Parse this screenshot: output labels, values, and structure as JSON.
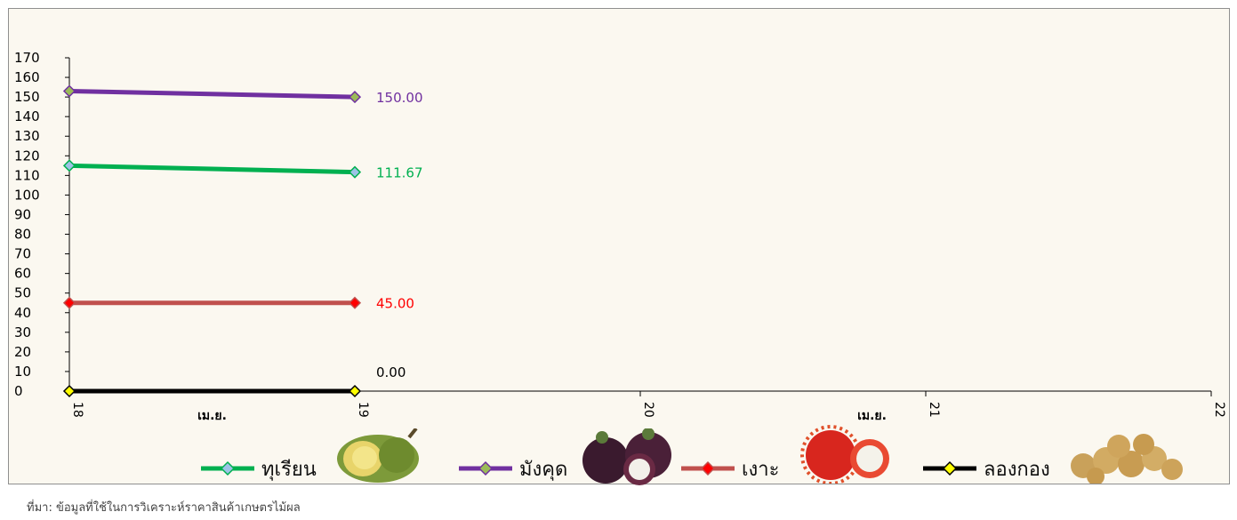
{
  "chart_data": {
    "type": "line",
    "x": [
      18,
      19,
      20,
      21,
      22
    ],
    "x_ticks": [
      "18",
      "19",
      "20",
      "21",
      "22"
    ],
    "month_labels": [
      "เม.ย.",
      "เม.ย."
    ],
    "ylim": [
      0,
      170
    ],
    "y_ticks": [
      "0",
      "10",
      "20",
      "30",
      "40",
      "50",
      "60",
      "70",
      "80",
      "90",
      "100",
      "110",
      "120",
      "130",
      "140",
      "150",
      "160",
      "170"
    ],
    "series": [
      {
        "name": "ทุเรียน",
        "color": "#00b050",
        "marker_color": "#9dc3e6",
        "x": [
          18,
          19
        ],
        "values": [
          115,
          111.67
        ],
        "end_label": "111.67"
      },
      {
        "name": "มังคุด",
        "color": "#7030a0",
        "marker_color": "#9bbb59",
        "x": [
          18,
          19
        ],
        "values": [
          153,
          150
        ],
        "end_label": "150.00"
      },
      {
        "name": "เงาะ",
        "color": "#c0504d",
        "marker_color": "#ff0000",
        "x": [
          18,
          19
        ],
        "values": [
          45,
          45
        ],
        "end_label": "45.00"
      },
      {
        "name": "ลองกอง",
        "color": "#000000",
        "marker_color": "#ffff00",
        "x": [
          18,
          19
        ],
        "values": [
          0,
          0
        ],
        "end_label": "0.00"
      }
    ],
    "label_colors": [
      "#00b050",
      "#7030a0",
      "#ff0000",
      "#000000"
    ]
  },
  "caption": "ที่มา: ข้อมูลที่ใช้ในการวิเคราะห์ราคาสินค้าเกษตรไม้ผล"
}
